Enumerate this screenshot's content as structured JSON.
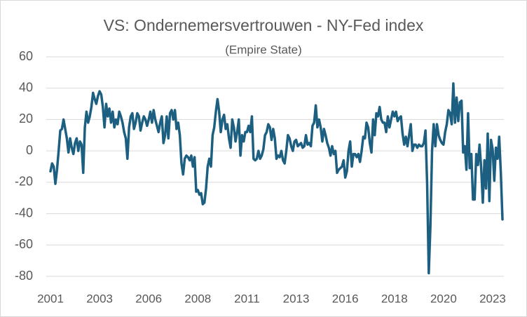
{
  "chart_data": {
    "type": "line",
    "title": "VS: Ondernemersvertrouwen - NY-Fed index",
    "subtitle": "(Empire State)",
    "categories": [
      "2001",
      null,
      null,
      null,
      null,
      null,
      null,
      null,
      null,
      null,
      null,
      null,
      null,
      null,
      null,
      null,
      null,
      null,
      null,
      null,
      null,
      null,
      null,
      null,
      null,
      null,
      null,
      null,
      null,
      null,
      "2003",
      null,
      null,
      null,
      null,
      null,
      null,
      null,
      null,
      null,
      null,
      null,
      null,
      null,
      null,
      null,
      null,
      null,
      null,
      null,
      null,
      null,
      null,
      null,
      null,
      null,
      null,
      null,
      null,
      null,
      "2006",
      null,
      null,
      null,
      null,
      null,
      null,
      null,
      null,
      null,
      null,
      null,
      null,
      null,
      null,
      null,
      null,
      null,
      null,
      null,
      null,
      null,
      null,
      null,
      null,
      null,
      null,
      null,
      null,
      null,
      "2008",
      null,
      null,
      null,
      null,
      null,
      null,
      null,
      null,
      null,
      null,
      null,
      null,
      null,
      null,
      null,
      null,
      null,
      null,
      null,
      null,
      null,
      null,
      null,
      null,
      null,
      null,
      null,
      null,
      null,
      "2011",
      null,
      null,
      null,
      null,
      null,
      null,
      null,
      null,
      null,
      null,
      null,
      null,
      null,
      null,
      null,
      null,
      null,
      null,
      null,
      null,
      null,
      null,
      null,
      null,
      null,
      null,
      null,
      null,
      null,
      "2013",
      null,
      null,
      null,
      null,
      null,
      null,
      null,
      null,
      null,
      null,
      null,
      null,
      null,
      null,
      null,
      null,
      null,
      null,
      null,
      null,
      null,
      null,
      null,
      null,
      null,
      null,
      null,
      null,
      null,
      "2016",
      null,
      null,
      null,
      null,
      null,
      null,
      null,
      null,
      null,
      null,
      null,
      null,
      null,
      null,
      null,
      null,
      null,
      null,
      null,
      null,
      null,
      null,
      null,
      null,
      null,
      null,
      null,
      null,
      null,
      "2018",
      null,
      null,
      null,
      null,
      null,
      null,
      null,
      null,
      null,
      null,
      null,
      null,
      null,
      null,
      null,
      null,
      null,
      null,
      null,
      null,
      null,
      null,
      null,
      null,
      null,
      null,
      null,
      null,
      null,
      "2020",
      null,
      null,
      null,
      null,
      null,
      null,
      null,
      null,
      null,
      null,
      null,
      null,
      null,
      null,
      null,
      null,
      null,
      null,
      null,
      null,
      null,
      null,
      null,
      null,
      null,
      null,
      null,
      null,
      null,
      "2023",
      null,
      null,
      null,
      null,
      null,
      null
    ],
    "values": [
      -13,
      -8,
      -10,
      -21,
      -12,
      0,
      13,
      14,
      20,
      14,
      8,
      -1,
      8,
      2,
      -2,
      5,
      8,
      0,
      6,
      4,
      -14,
      15,
      25,
      18,
      22,
      28,
      37,
      33,
      30,
      35,
      38,
      36,
      28,
      15,
      30,
      22,
      27,
      18,
      25,
      15,
      20,
      17,
      25,
      22,
      18,
      12,
      8,
      -5,
      15,
      22,
      24,
      14,
      18,
      24,
      22,
      13,
      18,
      22,
      20,
      16,
      20,
      25,
      18,
      26,
      20,
      16,
      12,
      18,
      22,
      5,
      10,
      22,
      8,
      24,
      26,
      20,
      26,
      14,
      18,
      10,
      -8,
      -15,
      -5,
      -3,
      -4,
      -6,
      -3,
      -10,
      -4,
      -26,
      -25,
      -28,
      -27,
      -34,
      -33,
      -24,
      -10,
      -5,
      -10,
      10,
      15,
      25,
      33,
      25,
      12,
      20,
      23,
      14,
      17,
      8,
      2,
      20,
      15,
      6,
      12,
      20,
      -3,
      10,
      6,
      12,
      12,
      16,
      12,
      22,
      -5,
      -6,
      -5,
      0,
      -5,
      -3,
      1,
      10,
      12,
      17,
      15,
      7,
      14,
      8,
      -5,
      -3,
      -4,
      0,
      -6,
      -8,
      0,
      10,
      8,
      3,
      0,
      6,
      7,
      3,
      4,
      5,
      2,
      3,
      10,
      4,
      5,
      3,
      16,
      18,
      29,
      15,
      20,
      15,
      6,
      14,
      10,
      5,
      2,
      -3,
      3,
      -2,
      0,
      -14,
      -12,
      -11,
      -10,
      -6,
      -17,
      -13,
      0,
      6,
      -10,
      -2,
      -2,
      -4,
      -2,
      -7,
      0,
      9,
      8,
      18,
      15,
      5,
      -1,
      20,
      10,
      24,
      22,
      28,
      20,
      18,
      18,
      12,
      22,
      15,
      20,
      25,
      22,
      25,
      19,
      21,
      22,
      11,
      4,
      9,
      3,
      10,
      17,
      0,
      4,
      4,
      2,
      4,
      3,
      3,
      5,
      13,
      -21,
      -78,
      -48,
      0,
      17,
      3,
      17,
      10,
      7,
      5,
      4,
      12,
      17,
      26,
      24,
      17,
      43,
      18,
      34,
      19,
      31,
      32,
      -1,
      3,
      -12,
      24,
      -11,
      -2,
      -31,
      -31,
      -2,
      -9,
      4,
      -11,
      -33,
      -6,
      -24,
      11,
      -32,
      7,
      1,
      -19,
      2,
      -5,
      9,
      -14,
      -43.7
    ],
    "color": "#1c5f80",
    "ylim": [
      -80,
      60
    ],
    "yticks": [
      -80,
      -60,
      -40,
      -20,
      0,
      20,
      40,
      60
    ],
    "grid": true
  }
}
